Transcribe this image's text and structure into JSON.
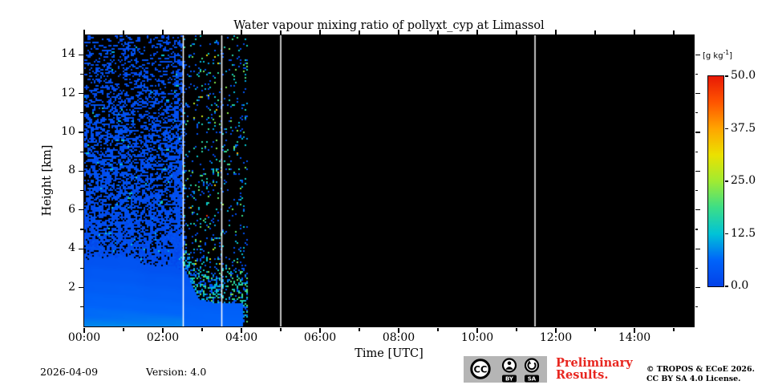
{
  "chart_data": {
    "type": "heatmap",
    "title": "Water vapour mixing ratio of pollyxt_cyp at Limassol",
    "xlabel": "Time [UTC]",
    "ylabel": "Height [km]",
    "xlim": [
      0,
      15.51
    ],
    "ylim": [
      0,
      15
    ],
    "grid": false,
    "x_major_ticks": [
      {
        "t": 0,
        "label": "00:00"
      },
      {
        "t": 2,
        "label": "02:00"
      },
      {
        "t": 4,
        "label": "04:00"
      },
      {
        "t": 6,
        "label": "06:00"
      },
      {
        "t": 8,
        "label": "08:00"
      },
      {
        "t": 10,
        "label": "10:00"
      },
      {
        "t": 12,
        "label": "12:00"
      },
      {
        "t": 14,
        "label": "14:00"
      }
    ],
    "x_minor_step_hours": 1,
    "y_major_ticks": [
      {
        "km": 2,
        "label": "2"
      },
      {
        "km": 4,
        "label": "4"
      },
      {
        "km": 6,
        "label": "6"
      },
      {
        "km": 8,
        "label": "8"
      },
      {
        "km": 10,
        "label": "10"
      },
      {
        "km": 12,
        "label": "12"
      },
      {
        "km": 14,
        "label": "14"
      }
    ],
    "y_minor_step_km": 1,
    "background_no_data": "#000000",
    "marker_color": "#ffffff",
    "profile_marker_times": [
      2.52,
      3.5,
      5.0,
      11.47
    ],
    "colorbar": {
      "unit_open": "[g kg",
      "unit_exp": "-1",
      "unit_close": "]",
      "vmin": 0,
      "vmax": 50,
      "ticks": [
        {
          "v": 50,
          "label": "50.0"
        },
        {
          "v": 37.5,
          "label": "37.5"
        },
        {
          "v": 25,
          "label": "25.0"
        },
        {
          "v": 12.5,
          "label": "12.5"
        },
        {
          "v": 0,
          "label": "0.0"
        }
      ],
      "stops": [
        {
          "v": 0,
          "color": "#0341e8"
        },
        {
          "v": 6.25,
          "color": "#0064fa"
        },
        {
          "v": 12.5,
          "color": "#00c3d7"
        },
        {
          "v": 18.75,
          "color": "#3cde87"
        },
        {
          "v": 25,
          "color": "#a0eb32"
        },
        {
          "v": 31.25,
          "color": "#ebe100"
        },
        {
          "v": 37.5,
          "color": "#ffa500"
        },
        {
          "v": 43.75,
          "color": "#ff5500"
        },
        {
          "v": 50,
          "color": "#e81905"
        }
      ]
    },
    "rng_seed": 42,
    "segments": [
      {
        "name": "dense-measurement",
        "t_start": 0.0,
        "t_end": 2.52,
        "solid_top_km": 3.3,
        "surface_gkg": 7.5,
        "top_gkg": 3.0,
        "aloft_gkg_typical": 2.0,
        "speckle_density_near_layer": 0.78,
        "speckle_density_at_top": 0.16
      },
      {
        "name": "attenuated-measurement",
        "t_start": 2.55,
        "t_end": 3.5,
        "solid_top_start_km": 3.0,
        "solid_top_end_km": 1.3,
        "surface_gkg": 6.4,
        "edge_band_km": 1.3,
        "edge_density": 0.45,
        "aloft_density": 0.16
      },
      {
        "name": "sparse-measurement",
        "t_start": 3.53,
        "t_end": 4.17,
        "solid_top_km": 1.22,
        "solid_until_t": 4.03,
        "surface_gkg": 6.3,
        "low_density": 0.32,
        "low_top_km": 3.0,
        "aloft_density": 0.09
      },
      {
        "name": "no-data",
        "t_start": 4.17,
        "t_end": 15.51
      }
    ]
  },
  "footer": {
    "date": "2026-04-09",
    "version": "Version: 4.0",
    "preliminary_line1": "Preliminary",
    "preliminary_line2": "Results.",
    "preliminary_color": "#e8261f",
    "copyright_line1": "© TROPOS & ECoE 2026.",
    "copyright_line2": "CC BY SA 4.0 License.",
    "badge": {
      "cc": "CC",
      "by": "BY",
      "sa": "SA"
    }
  }
}
